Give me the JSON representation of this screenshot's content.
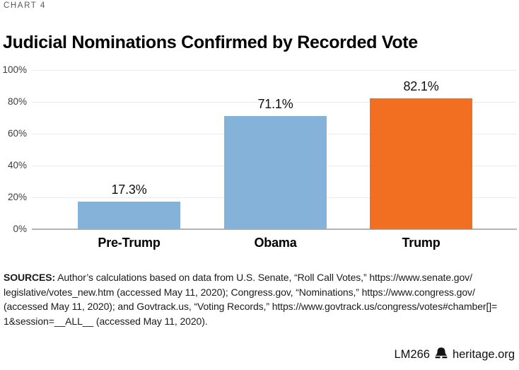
{
  "kicker": "CHART 4",
  "title": "Judicial Nominations Confirmed by Recorded Vote",
  "chart_data": {
    "type": "bar",
    "title": "Judicial Nominations Confirmed by Recorded Vote",
    "categories": [
      "Pre-Trump",
      "Obama",
      "Trump"
    ],
    "values": [
      17.3,
      71.1,
      82.1
    ],
    "value_labels": [
      "17.3%",
      "71.1%",
      "82.1%"
    ],
    "colors": [
      "#85B2D9",
      "#85B2D9",
      "#F26E21"
    ],
    "xlabel": "",
    "ylabel": "",
    "ylim": [
      0,
      100
    ],
    "yticks": [
      0,
      20,
      40,
      60,
      80,
      100
    ],
    "ytick_labels": [
      "0%",
      "20%",
      "40%",
      "60%",
      "80%",
      "100%"
    ],
    "grid": "horizontal",
    "legend": "none"
  },
  "sources": {
    "label": "SOURCES:",
    "lines": [
      " Author’s calculations based on data from U.S. Senate, “Roll Call Votes,” https://www.senate.gov/",
      "legislative/votes_new.htm (accessed May 11, 2020); Congress.gov, “Nominations,” https://www.congress.gov/",
      "(accessed May 11, 2020); and Govtrack.us, “Voting Records,” https://www.govtrack.us/congress/votes#chamber[]=",
      "1&session=__ALL__ (accessed May 11, 2020)."
    ]
  },
  "footer": {
    "chart_id": "LM266",
    "brand_icon": "liberty-bell-icon",
    "brand": "heritage.org"
  }
}
